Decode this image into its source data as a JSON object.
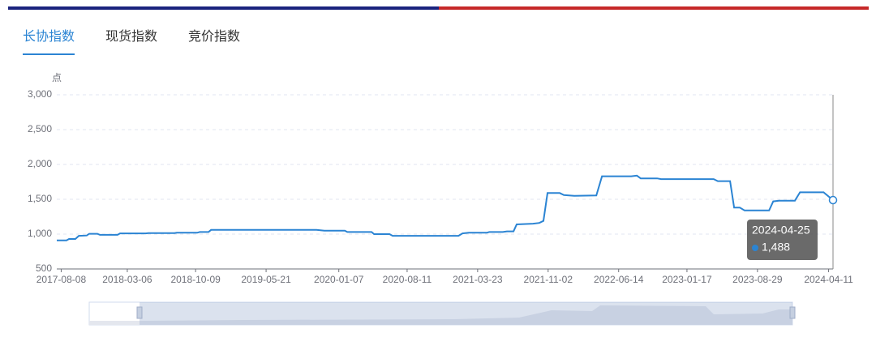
{
  "tabs": {
    "items": [
      "长协指数",
      "现货指数",
      "竞价指数"
    ],
    "active": 0
  },
  "chart_data": {
    "type": "line",
    "y_label": "点",
    "x": [
      "2017-07-25",
      "2017-08-25",
      "2017-09-02",
      "2017-09-22",
      "2017-10-03",
      "2017-10-28",
      "2017-11-05",
      "2017-12-01",
      "2017-12-09",
      "2018-02-03",
      "2018-02-11",
      "2018-05-04",
      "2018-05-12",
      "2018-08-03",
      "2018-08-10",
      "2018-10-14",
      "2018-10-22",
      "2018-11-19",
      "2018-11-27",
      "2019-10-28",
      "2019-11-22",
      "2020-01-26",
      "2020-02-03",
      "2020-04-20",
      "2020-04-28",
      "2020-06-16",
      "2020-06-26",
      "2021-01-21",
      "2021-02-03",
      "2021-02-23",
      "2021-04-21",
      "2021-04-29",
      "2021-06-11",
      "2021-06-24",
      "2021-07-15",
      "2021-07-25",
      "2021-09-15",
      "2021-10-05",
      "2021-10-18",
      "2021-10-31",
      "2021-12-09",
      "2021-12-22",
      "2022-01-24",
      "2022-04-04",
      "2022-04-22",
      "2022-07-24",
      "2022-08-11",
      "2022-08-23",
      "2022-10-14",
      "2022-10-27",
      "2023-04-12",
      "2023-04-25",
      "2023-06-03",
      "2023-06-16",
      "2023-07-04",
      "2023-07-19",
      "2023-10-05",
      "2023-10-18",
      "2023-11-05",
      "2023-12-26",
      "2024-01-11",
      "2024-03-26",
      "2024-04-25"
    ],
    "series": [
      {
        "name": "长协指数",
        "color": "#2b84d3",
        "values": [
          910,
          910,
          930,
          930,
          975,
          980,
          1005,
          1005,
          990,
          990,
          1010,
          1010,
          1015,
          1015,
          1020,
          1020,
          1030,
          1030,
          1060,
          1060,
          1050,
          1050,
          1030,
          1030,
          1000,
          1000,
          975,
          975,
          1010,
          1020,
          1020,
          1030,
          1030,
          1040,
          1040,
          1140,
          1150,
          1160,
          1190,
          1590,
          1590,
          1560,
          1550,
          1555,
          1830,
          1830,
          1840,
          1800,
          1800,
          1790,
          1790,
          1760,
          1760,
          1380,
          1380,
          1340,
          1340,
          1470,
          1480,
          1480,
          1600,
          1600,
          1488
        ]
      }
    ],
    "xlim": [
      "2017-07-25",
      "2024-04-25"
    ],
    "xticks": [
      "2017-08-08",
      "2018-03-06",
      "2018-10-09",
      "2019-05-21",
      "2020-01-07",
      "2020-08-11",
      "2021-03-23",
      "2021-11-02",
      "2022-06-14",
      "2023-01-17",
      "2023-08-29",
      "2024-04-11"
    ],
    "ylim": [
      500,
      3000
    ],
    "yticks": [
      500,
      {
        "value": 1000,
        "label": "1,000"
      },
      {
        "value": 1500,
        "label": "1,500"
      },
      {
        "value": 2000,
        "label": "2,000"
      },
      {
        "value": 2500,
        "label": "2,500"
      },
      {
        "value": 3000,
        "label": "3,000"
      }
    ],
    "grid": true,
    "tooltip": {
      "date": "2024-04-25",
      "label": "1,488"
    }
  }
}
